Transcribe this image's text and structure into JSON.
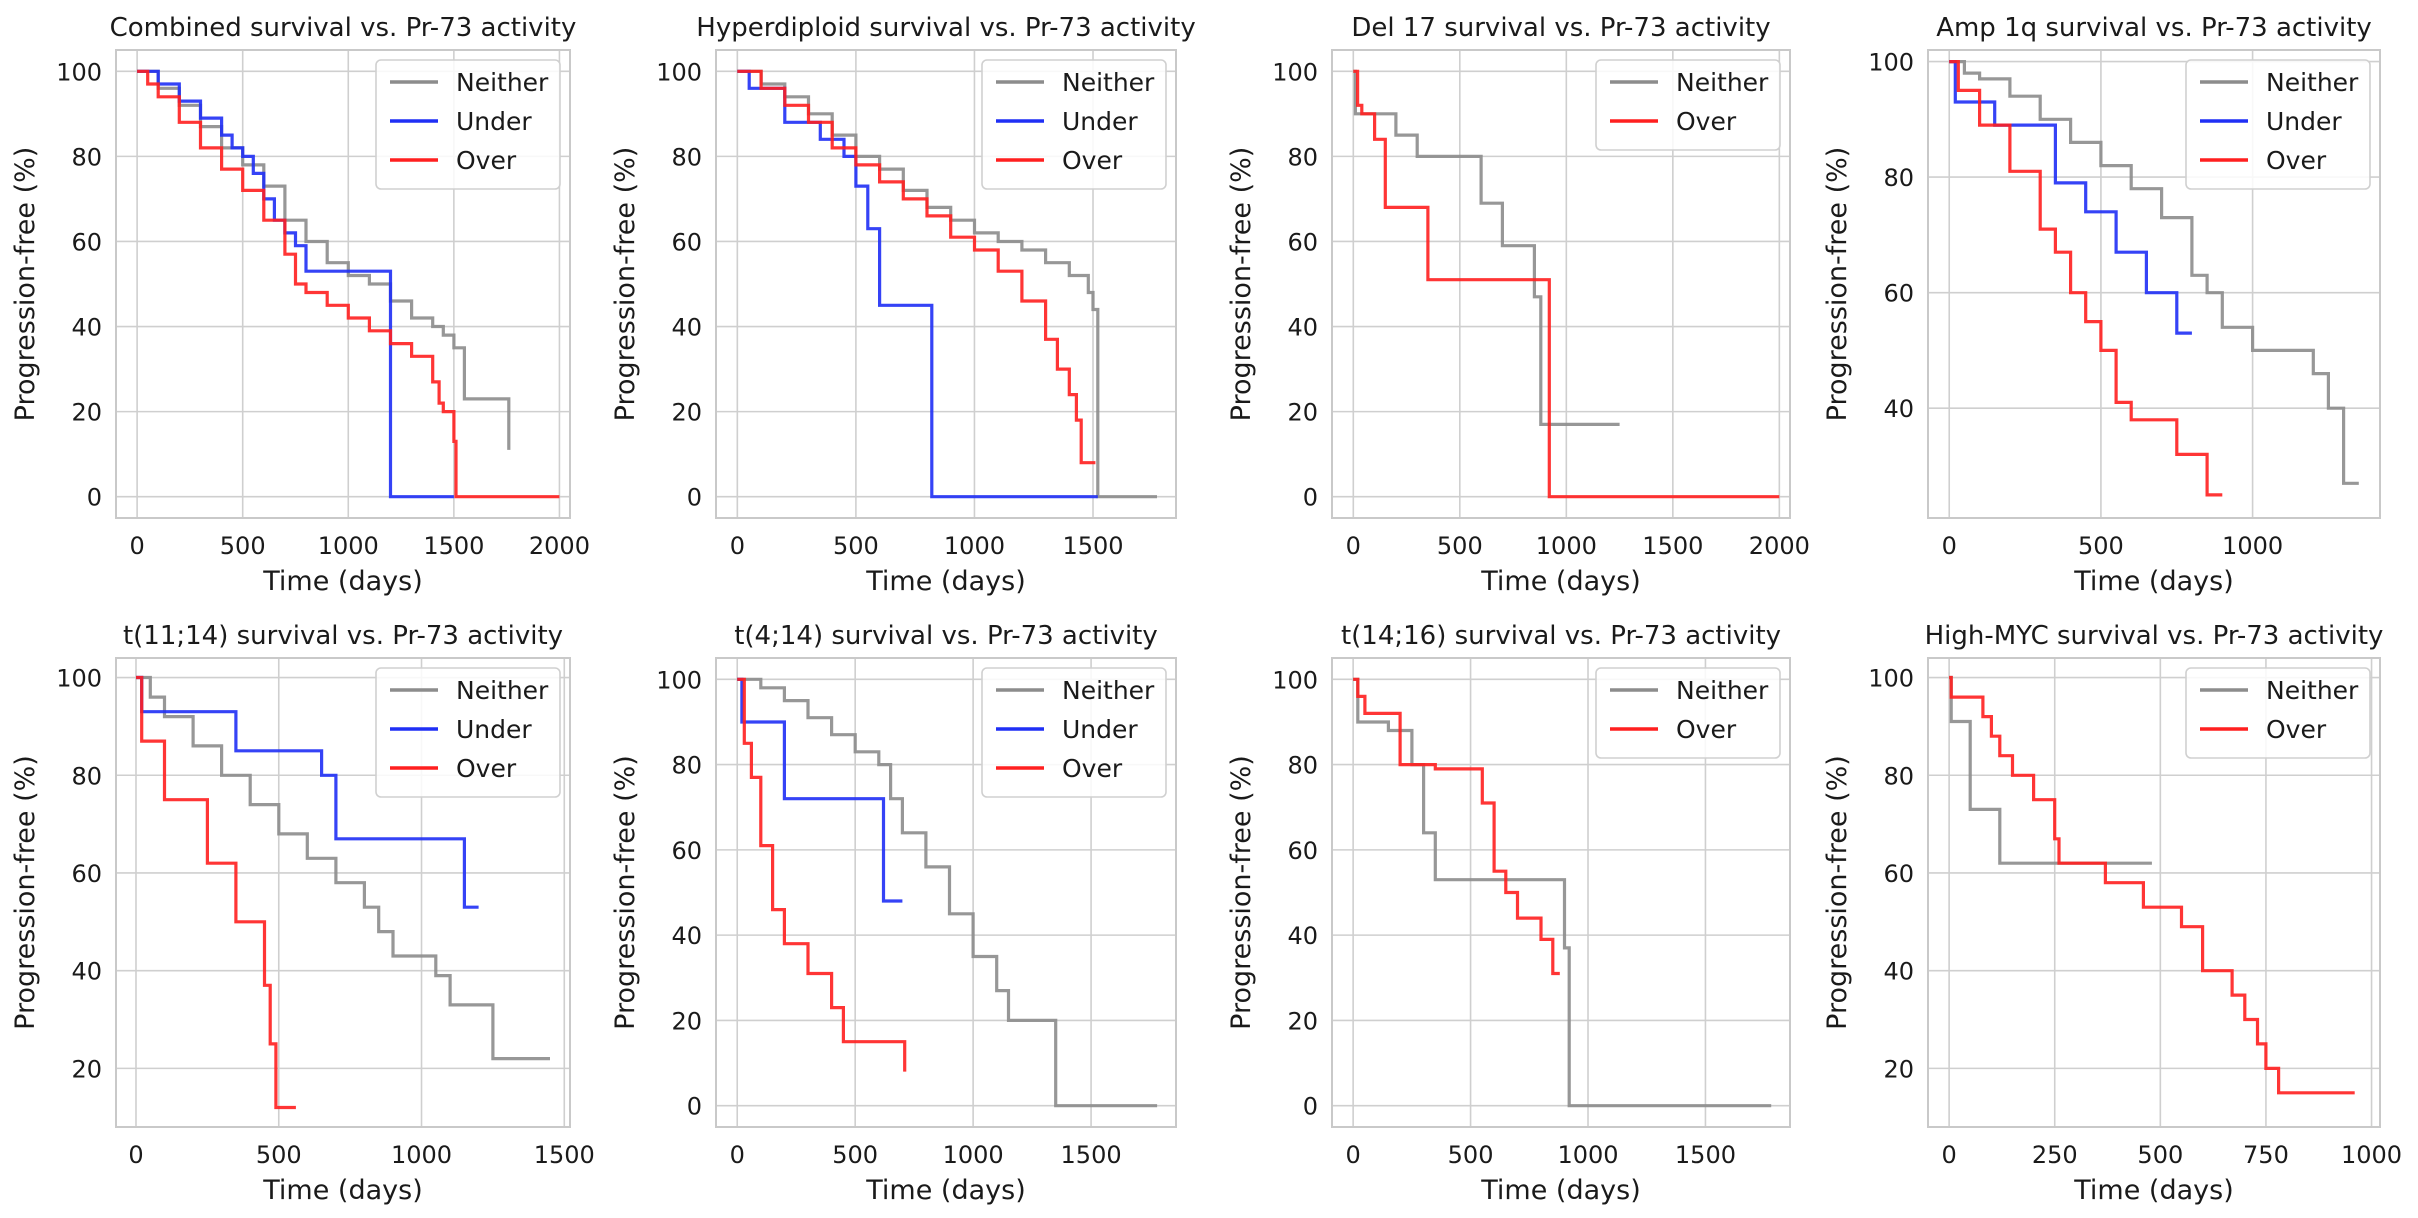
{
  "chart_data": [
    {
      "type": "line",
      "step": true,
      "title": "Combined survival vs. Pr-73 activity",
      "xlabel": "Time (days)",
      "ylabel": "Progression-free (%)",
      "xlim": [
        -100,
        2050
      ],
      "ylim": [
        -5,
        105
      ],
      "xticks": [
        "0",
        "500",
        "1000",
        "1500",
        "2000"
      ],
      "xtick_values": [
        0,
        500,
        1000,
        1500,
        2000
      ],
      "yticks": [
        "0",
        "20",
        "40",
        "60",
        "80",
        "100"
      ],
      "ytick_values": [
        0,
        20,
        40,
        60,
        80,
        100
      ],
      "legend_position": "top-right",
      "series": [
        {
          "name": "Neither",
          "color": "#8c8c8c",
          "x": [
            0,
            100,
            200,
            300,
            400,
            500,
            600,
            700,
            800,
            900,
            1000,
            1100,
            1200,
            1300,
            1400,
            1450,
            1500,
            1550,
            1750,
            1760
          ],
          "y": [
            100,
            96,
            92,
            87,
            82,
            78,
            73,
            65,
            60,
            55,
            52,
            50,
            46,
            42,
            40,
            38,
            35,
            23,
            23,
            11
          ]
        },
        {
          "name": "Under",
          "color": "#1f2ff5",
          "x": [
            0,
            100,
            200,
            300,
            400,
            450,
            500,
            550,
            600,
            650,
            700,
            750,
            800,
            1200,
            1500
          ],
          "y": [
            100,
            97,
            93,
            89,
            85,
            82,
            80,
            76,
            70,
            65,
            62,
            59,
            53,
            0,
            0
          ]
        },
        {
          "name": "Over",
          "color": "#ff1f1f",
          "x": [
            0,
            50,
            100,
            200,
            300,
            400,
            500,
            600,
            700,
            750,
            800,
            900,
            1000,
            1100,
            1200,
            1300,
            1400,
            1430,
            1450,
            1500,
            1510,
            2000
          ],
          "y": [
            100,
            97,
            94,
            88,
            82,
            77,
            72,
            65,
            57,
            50,
            48,
            45,
            42,
            39,
            36,
            33,
            27,
            22,
            20,
            13,
            0,
            0
          ]
        }
      ]
    },
    {
      "type": "line",
      "step": true,
      "title": "Hyperdiploid survival vs. Pr-73 activity",
      "xlabel": "Time (days)",
      "ylabel": "Progression-free (%)",
      "xlim": [
        -90,
        1850
      ],
      "ylim": [
        -5,
        105
      ],
      "xticks": [
        "0",
        "500",
        "1000",
        "1500"
      ],
      "xtick_values": [
        0,
        500,
        1000,
        1500
      ],
      "yticks": [
        "0",
        "20",
        "40",
        "60",
        "80",
        "100"
      ],
      "ytick_values": [
        0,
        20,
        40,
        60,
        80,
        100
      ],
      "legend_position": "top-right",
      "series": [
        {
          "name": "Neither",
          "color": "#8c8c8c",
          "x": [
            0,
            100,
            200,
            300,
            400,
            500,
            600,
            700,
            800,
            900,
            1000,
            1100,
            1200,
            1300,
            1400,
            1480,
            1500,
            1520,
            1770
          ],
          "y": [
            100,
            97,
            94,
            90,
            85,
            80,
            77,
            72,
            68,
            65,
            62,
            60,
            58,
            55,
            52,
            48,
            44,
            0,
            0
          ]
        },
        {
          "name": "Under",
          "color": "#1f2ff5",
          "x": [
            0,
            50,
            200,
            350,
            450,
            500,
            550,
            600,
            820,
            1520
          ],
          "y": [
            100,
            96,
            88,
            84,
            80,
            73,
            63,
            45,
            0,
            0
          ]
        },
        {
          "name": "Over",
          "color": "#ff1f1f",
          "x": [
            0,
            100,
            200,
            300,
            400,
            500,
            600,
            700,
            800,
            900,
            1000,
            1100,
            1200,
            1300,
            1350,
            1400,
            1430,
            1450,
            1510
          ],
          "y": [
            100,
            96,
            92,
            88,
            82,
            78,
            74,
            70,
            66,
            61,
            58,
            53,
            46,
            37,
            30,
            24,
            18,
            8,
            8
          ]
        }
      ]
    },
    {
      "type": "line",
      "step": true,
      "title": "Del 17 survival vs. Pr-73 activity",
      "xlabel": "Time (days)",
      "ylabel": "Progression-free (%)",
      "xlim": [
        -100,
        2050
      ],
      "ylim": [
        -5,
        105
      ],
      "xticks": [
        "0",
        "500",
        "1000",
        "1500",
        "2000"
      ],
      "xtick_values": [
        0,
        500,
        1000,
        1500,
        2000
      ],
      "yticks": [
        "0",
        "20",
        "40",
        "60",
        "80",
        "100"
      ],
      "ytick_values": [
        0,
        20,
        40,
        60,
        80,
        100
      ],
      "legend_position": "top-right",
      "series": [
        {
          "name": "Neither",
          "color": "#8c8c8c",
          "x": [
            0,
            10,
            100,
            200,
            300,
            550,
            600,
            700,
            850,
            880,
            900,
            1250
          ],
          "y": [
            100,
            90,
            90,
            85,
            80,
            80,
            69,
            59,
            47,
            17,
            17,
            17
          ]
        },
        {
          "name": "Over",
          "color": "#ff1f1f",
          "x": [
            0,
            20,
            40,
            100,
            150,
            350,
            880,
            900,
            920,
            2000
          ],
          "y": [
            100,
            92,
            90,
            84,
            68,
            51,
            51,
            51,
            0,
            0
          ]
        }
      ]
    },
    {
      "type": "line",
      "step": true,
      "title": "Amp 1q survival vs. Pr-73 activity",
      "xlabel": "Time (days)",
      "ylabel": "Progression-free (%)",
      "xlim": [
        -70,
        1420
      ],
      "ylim": [
        21,
        102
      ],
      "xticks": [
        "0",
        "500",
        "1000"
      ],
      "xtick_values": [
        0,
        500,
        1000
      ],
      "yticks": [
        "40",
        "60",
        "80",
        "100"
      ],
      "ytick_values": [
        40,
        60,
        80,
        100
      ],
      "legend_position": "top-right",
      "series": [
        {
          "name": "Neither",
          "color": "#8c8c8c",
          "x": [
            0,
            50,
            100,
            200,
            300,
            400,
            500,
            600,
            700,
            800,
            850,
            900,
            1000,
            1200,
            1250,
            1300,
            1350
          ],
          "y": [
            100,
            98,
            97,
            94,
            90,
            86,
            82,
            78,
            73,
            63,
            60,
            54,
            50,
            46,
            40,
            27,
            27
          ]
        },
        {
          "name": "Under",
          "color": "#1f2ff5",
          "x": [
            0,
            20,
            150,
            350,
            450,
            550,
            650,
            750,
            800
          ],
          "y": [
            100,
            93,
            89,
            79,
            74,
            67,
            60,
            53,
            53
          ]
        },
        {
          "name": "Over",
          "color": "#ff1f1f",
          "x": [
            0,
            30,
            100,
            200,
            300,
            350,
            400,
            450,
            500,
            550,
            600,
            750,
            850,
            900
          ],
          "y": [
            100,
            95,
            89,
            81,
            71,
            67,
            60,
            55,
            50,
            41,
            38,
            32,
            25,
            25
          ]
        }
      ]
    },
    {
      "type": "line",
      "step": true,
      "title": "t(11;14) survival vs. Pr-73 activity",
      "xlabel": "Time (days)",
      "ylabel": "Progression-free (%)",
      "xlim": [
        -70,
        1520
      ],
      "ylim": [
        8,
        104
      ],
      "xticks": [
        "0",
        "500",
        "1000",
        "1500"
      ],
      "xtick_values": [
        0,
        500,
        1000,
        1500
      ],
      "yticks": [
        "20",
        "40",
        "60",
        "80",
        "100"
      ],
      "ytick_values": [
        20,
        40,
        60,
        80,
        100
      ],
      "legend_position": "top-right",
      "series": [
        {
          "name": "Neither",
          "color": "#8c8c8c",
          "x": [
            0,
            50,
            100,
            200,
            300,
            400,
            500,
            600,
            700,
            800,
            850,
            900,
            1050,
            1100,
            1250,
            1450
          ],
          "y": [
            100,
            96,
            92,
            86,
            80,
            74,
            68,
            63,
            58,
            53,
            48,
            43,
            39,
            33,
            22,
            22
          ]
        },
        {
          "name": "Under",
          "color": "#1f2ff5",
          "x": [
            0,
            20,
            300,
            350,
            600,
            650,
            700,
            1150,
            1200
          ],
          "y": [
            100,
            93,
            93,
            85,
            85,
            80,
            67,
            53,
            53
          ]
        },
        {
          "name": "Over",
          "color": "#ff1f1f",
          "x": [
            0,
            20,
            100,
            250,
            350,
            450,
            470,
            490,
            520,
            560
          ],
          "y": [
            100,
            87,
            75,
            62,
            50,
            37,
            25,
            12,
            12,
            12
          ]
        }
      ]
    },
    {
      "type": "line",
      "step": true,
      "title": "t(4;14) survival vs. Pr-73 activity",
      "xlabel": "Time (days)",
      "ylabel": "Progression-free (%)",
      "xlim": [
        -90,
        1860
      ],
      "ylim": [
        -5,
        105
      ],
      "xticks": [
        "0",
        "500",
        "1000",
        "1500"
      ],
      "xtick_values": [
        0,
        500,
        1000,
        1500
      ],
      "yticks": [
        "0",
        "20",
        "40",
        "60",
        "80",
        "100"
      ],
      "ytick_values": [
        0,
        20,
        40,
        60,
        80,
        100
      ],
      "legend_position": "top-right",
      "series": [
        {
          "name": "Neither",
          "color": "#8c8c8c",
          "x": [
            0,
            100,
            200,
            300,
            400,
            500,
            600,
            650,
            700,
            800,
            900,
            1000,
            1100,
            1150,
            1350,
            1780
          ],
          "y": [
            100,
            98,
            95,
            91,
            87,
            83,
            80,
            72,
            64,
            56,
            45,
            35,
            27,
            20,
            0,
            0
          ]
        },
        {
          "name": "Under",
          "color": "#1f2ff5",
          "x": [
            0,
            20,
            200,
            600,
            620,
            700
          ],
          "y": [
            100,
            90,
            72,
            72,
            48,
            48
          ]
        },
        {
          "name": "Over",
          "color": "#ff1f1f",
          "x": [
            0,
            30,
            60,
            100,
            150,
            200,
            300,
            400,
            450,
            700,
            710
          ],
          "y": [
            100,
            85,
            77,
            61,
            46,
            38,
            31,
            23,
            15,
            15,
            8
          ]
        }
      ]
    },
    {
      "type": "line",
      "step": true,
      "title": "t(14;16) survival vs. Pr-73 activity",
      "xlabel": "Time (days)",
      "ylabel": "Progression-free (%)",
      "xlim": [
        -90,
        1860
      ],
      "ylim": [
        -5,
        105
      ],
      "xticks": [
        "0",
        "500",
        "1000",
        "1500"
      ],
      "xtick_values": [
        0,
        500,
        1000,
        1500
      ],
      "yticks": [
        "0",
        "20",
        "40",
        "60",
        "80",
        "100"
      ],
      "ytick_values": [
        0,
        20,
        40,
        60,
        80,
        100
      ],
      "legend_position": "top-right",
      "series": [
        {
          "name": "Neither",
          "color": "#8c8c8c",
          "x": [
            0,
            20,
            150,
            250,
            300,
            350,
            870,
            900,
            920,
            1780
          ],
          "y": [
            100,
            90,
            88,
            80,
            64,
            53,
            53,
            37,
            0,
            0
          ]
        },
        {
          "name": "Over",
          "color": "#ff1f1f",
          "x": [
            0,
            20,
            50,
            200,
            300,
            350,
            550,
            600,
            650,
            700,
            800,
            850,
            880
          ],
          "y": [
            100,
            96,
            92,
            80,
            80,
            79,
            71,
            55,
            50,
            44,
            39,
            31,
            31
          ]
        }
      ]
    },
    {
      "type": "line",
      "step": true,
      "title": "High-MYC survival vs. Pr-73 activity",
      "xlabel": "Time (days)",
      "ylabel": "Progression-free (%)",
      "xlim": [
        -50,
        1020
      ],
      "ylim": [
        8,
        104
      ],
      "xticks": [
        "0",
        "250",
        "500",
        "750",
        "1000"
      ],
      "xtick_values": [
        0,
        250,
        500,
        750,
        1000
      ],
      "yticks": [
        "20",
        "40",
        "60",
        "80",
        "100"
      ],
      "ytick_values": [
        20,
        40,
        60,
        80,
        100
      ],
      "legend_position": "top-right",
      "series": [
        {
          "name": "Neither",
          "color": "#8c8c8c",
          "x": [
            0,
            5,
            50,
            120,
            480
          ],
          "y": [
            100,
            91,
            73,
            62,
            62
          ]
        },
        {
          "name": "Over",
          "color": "#ff1f1f",
          "x": [
            0,
            5,
            80,
            100,
            120,
            150,
            200,
            250,
            260,
            370,
            460,
            550,
            600,
            670,
            700,
            730,
            750,
            780,
            960
          ],
          "y": [
            100,
            96,
            92,
            88,
            84,
            80,
            75,
            67,
            62,
            58,
            53,
            49,
            40,
            35,
            30,
            25,
            20,
            15,
            15
          ]
        }
      ]
    }
  ]
}
